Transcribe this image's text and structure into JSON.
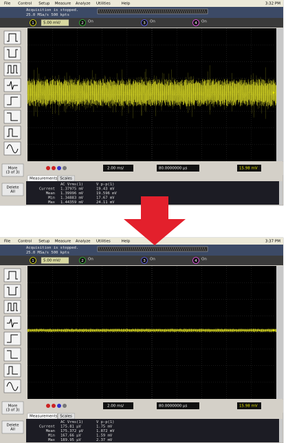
{
  "menu": [
    "File",
    "Control",
    "Setup",
    "Measure",
    "Analyze",
    "Utilities",
    "Help"
  ],
  "toolbar": {
    "more": [
      "More",
      "(3 of 3)"
    ],
    "delete": [
      "Delete",
      "All"
    ]
  },
  "tabs": [
    "Measurements",
    "Scales"
  ],
  "table_header": [
    "AC Vrms(1)",
    "V p-p(1)"
  ],
  "row_labels": [
    "Current",
    "Mean",
    "Min",
    "Max"
  ],
  "screens": [
    {
      "time": "3:32 PM",
      "status": "Acquisition is stopped.",
      "rate": "25.0 MSa/s   500 kpts",
      "channels": [
        {
          "num": "1",
          "label": "5.00 mV/"
        },
        {
          "num": "2",
          "label": "On"
        },
        {
          "num": "3",
          "label": "On"
        },
        {
          "num": "4",
          "label": "On"
        }
      ],
      "timebase": "2.00 ms/",
      "delay": "80.0000000 µs",
      "trigger": "15.98 mV",
      "rows": [
        [
          "1.37975 mV",
          "19.43 mV"
        ],
        [
          "1.39996 mV",
          "19.596 mV"
        ],
        [
          "1.34883 mV",
          "17.67 mV"
        ],
        [
          "1.44359 mV",
          "24.11 mV"
        ]
      ]
    },
    {
      "time": "3:37 PM",
      "status": "Acquisition is stopped.",
      "rate": "25.0 MSa/s   500 kpts",
      "channels": [
        {
          "num": "1",
          "label": "5.00 mV/"
        },
        {
          "num": "2",
          "label": "On"
        },
        {
          "num": "3",
          "label": "On"
        },
        {
          "num": "4",
          "label": "On"
        }
      ],
      "timebase": "2.00 ms/",
      "delay": "80.0000000 µs",
      "trigger": "15.98 mV",
      "rows": [
        [
          "175.81 µV",
          "1.75 mV"
        ],
        [
          "175.372 µV",
          "1.872 mV"
        ],
        [
          "167.66 µV",
          "1.59 mV"
        ],
        [
          "189.95 µV",
          "2.37 mV"
        ]
      ]
    }
  ]
}
